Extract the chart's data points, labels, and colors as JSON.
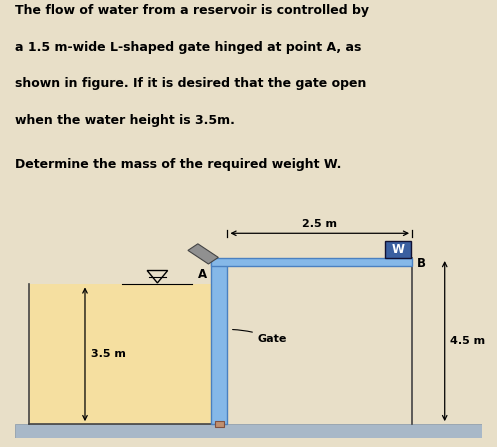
{
  "bg_color": "#e8dfc8",
  "text1": "The flow of water from a reservoir is controlled by",
  "text2": "a 1.5 m-wide L-shaped gate hinged at point A, as",
  "text3": "shown in figure. If it is desired that the gate open",
  "text4": "when the water height is 3.5m.",
  "text5": "Determine the mass of the required weight W.",
  "diagram_bg": "#ffffff",
  "water_color": "#f5dfa0",
  "gate_color": "#85b8e8",
  "gate_edge": "#4a80c0",
  "weight_color": "#3a5fa0",
  "ground_color": "#a8b8c8",
  "ground_edge": "#8898a8",
  "hinge_color": "#909090",
  "dim_color": "#000000",
  "pivot_color": "#c08858"
}
